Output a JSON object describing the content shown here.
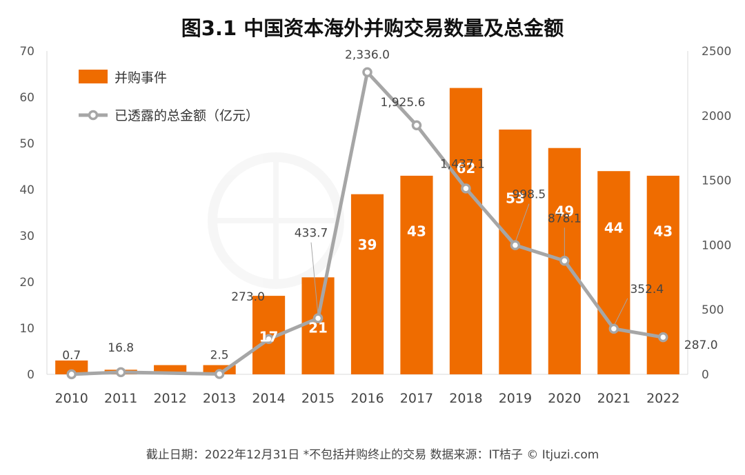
{
  "chart_data": {
    "type": "bar",
    "title": "图3.1  中国资本海外并购交易数量及总金额",
    "categories": [
      "2010",
      "2011",
      "2012",
      "2013",
      "2014",
      "2015",
      "2016",
      "2017",
      "2018",
      "2019",
      "2020",
      "2021",
      "2022"
    ],
    "series": [
      {
        "name": "并购事件",
        "kind": "bar",
        "axis": "left",
        "color": "#ef6c00",
        "values": [
          3,
          1,
          2,
          2,
          17,
          21,
          39,
          43,
          62,
          53,
          49,
          44,
          43
        ],
        "value_labels": [
          "",
          "",
          "",
          "",
          "17",
          "21",
          "39",
          "43",
          "62",
          "53",
          "49",
          "44",
          "43"
        ]
      },
      {
        "name": "已透露的总金额（亿元）",
        "kind": "line",
        "axis": "right",
        "color": "#a6a6a6",
        "values": [
          0.7,
          16.8,
          null,
          2.5,
          273.0,
          433.7,
          2336.0,
          1925.6,
          1437.1,
          998.5,
          878.1,
          352.4,
          287.0
        ],
        "value_labels": [
          "0.7",
          "16.8",
          "",
          "2.5",
          "273.0",
          "433.7",
          "2,336.0",
          "1,925.6",
          "1,437.1",
          "998.5",
          "878.1",
          "352.4",
          "287.0"
        ]
      }
    ],
    "y_left": {
      "min": 0,
      "max": 70,
      "ticks": [
        "0",
        "10",
        "20",
        "30",
        "40",
        "50",
        "60",
        "70"
      ]
    },
    "y_right": {
      "min": 0,
      "max": 2500,
      "ticks": [
        "0",
        "500",
        "1000",
        "1500",
        "2000",
        "2500"
      ]
    },
    "legend": [
      "并购事件",
      "已透露的总金额（亿元）"
    ],
    "legend_position": "top-left"
  },
  "footer": "截止日期：2022年12月31日    *不包括并购终止的交易    数据来源：IT桔子 © Itjuzi.com"
}
